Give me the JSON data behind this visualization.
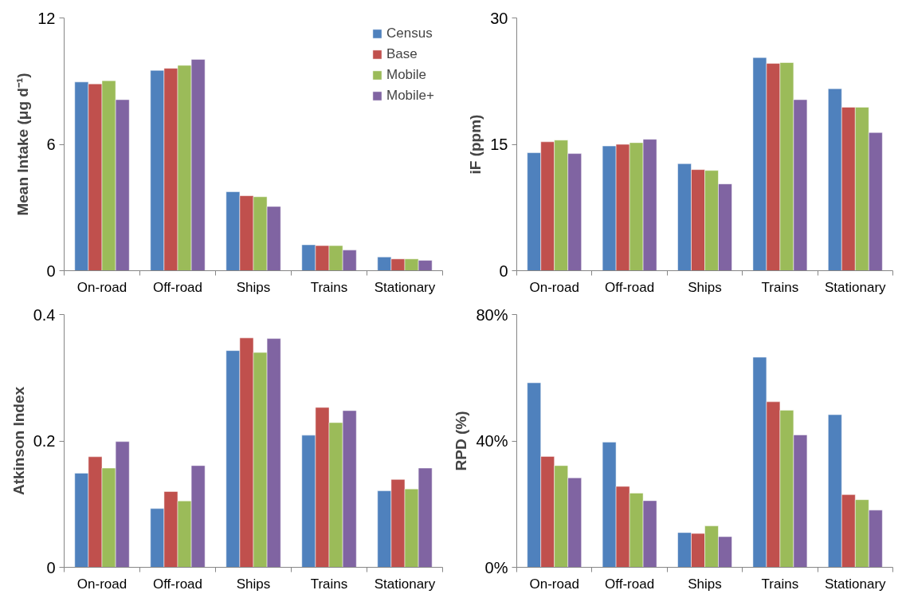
{
  "chart_data": [
    {
      "type": "bar",
      "ylabel": "Mean Intake (μg d⁻¹)",
      "categories": [
        "On-road",
        "Off-road",
        "Ships",
        "Trains",
        "Stationary"
      ],
      "ylim": [
        0,
        12
      ],
      "yticks": [
        0,
        6,
        12
      ],
      "grid": false,
      "legend": "top right",
      "series": [
        {
          "name": "Census",
          "color": "#4f81bd",
          "values": [
            8.96,
            9.51,
            3.75,
            1.23,
            0.65
          ]
        },
        {
          "name": "Base",
          "color": "#c0504d",
          "values": [
            8.87,
            9.61,
            3.56,
            1.19,
            0.56
          ]
        },
        {
          "name": "Mobile",
          "color": "#9bbb59",
          "values": [
            9.02,
            9.75,
            3.51,
            1.19,
            0.56
          ]
        },
        {
          "name": "Mobile+",
          "color": "#8064a2",
          "values": [
            8.12,
            10.03,
            3.05,
            0.98,
            0.49
          ]
        }
      ]
    },
    {
      "type": "bar",
      "ylabel": "iF (ppm)",
      "categories": [
        "On-road",
        "Off-road",
        "Ships",
        "Trains",
        "Stationary"
      ],
      "ylim": [
        0,
        30
      ],
      "yticks": [
        0,
        15,
        30
      ],
      "grid": false,
      "legend": false,
      "series": [
        {
          "color": "#4f81bd",
          "values": [
            14.0,
            14.8,
            12.7,
            25.3,
            21.6
          ]
        },
        {
          "color": "#c0504d",
          "values": [
            15.3,
            15.0,
            12.0,
            24.6,
            19.4
          ]
        },
        {
          "color": "#9bbb59",
          "values": [
            15.5,
            15.2,
            11.9,
            24.7,
            19.4
          ]
        },
        {
          "color": "#8064a2",
          "values": [
            13.9,
            15.6,
            10.3,
            20.3,
            16.4
          ]
        }
      ]
    },
    {
      "type": "bar",
      "ylabel": "Atkinson Index",
      "categories": [
        "On-road",
        "Off-road",
        "Ships",
        "Trains",
        "Stationary"
      ],
      "ylim": [
        0,
        0.4
      ],
      "yticks": [
        0,
        0.2,
        0.4
      ],
      "grid": false,
      "legend": false,
      "series": [
        {
          "color": "#4f81bd",
          "values": [
            0.149,
            0.093,
            0.343,
            0.209,
            0.121
          ]
        },
        {
          "color": "#c0504d",
          "values": [
            0.175,
            0.12,
            0.363,
            0.253,
            0.139
          ]
        },
        {
          "color": "#9bbb59",
          "values": [
            0.157,
            0.105,
            0.34,
            0.229,
            0.124
          ]
        },
        {
          "color": "#8064a2",
          "values": [
            0.199,
            0.161,
            0.362,
            0.248,
            0.157
          ]
        }
      ]
    },
    {
      "type": "bar",
      "ylabel": "RPD (%)",
      "categories": [
        "On-road",
        "Off-road",
        "Ships",
        "Trains",
        "Stationary"
      ],
      "ylim": [
        0,
        80
      ],
      "yticks": [
        {
          "value": 0,
          "label": "0%"
        },
        {
          "value": 40,
          "label": "40%"
        },
        {
          "value": 80,
          "label": "80%"
        }
      ],
      "grid": false,
      "legend": false,
      "series": [
        {
          "color": "#4f81bd",
          "values": [
            58.4,
            39.6,
            11.0,
            66.5,
            48.3
          ]
        },
        {
          "color": "#c0504d",
          "values": [
            35.1,
            25.6,
            10.7,
            52.4,
            23.0
          ]
        },
        {
          "color": "#9bbb59",
          "values": [
            32.2,
            23.5,
            13.1,
            49.7,
            21.4
          ]
        },
        {
          "color": "#8064a2",
          "values": [
            28.3,
            21.1,
            9.7,
            41.9,
            18.1
          ]
        }
      ]
    }
  ]
}
